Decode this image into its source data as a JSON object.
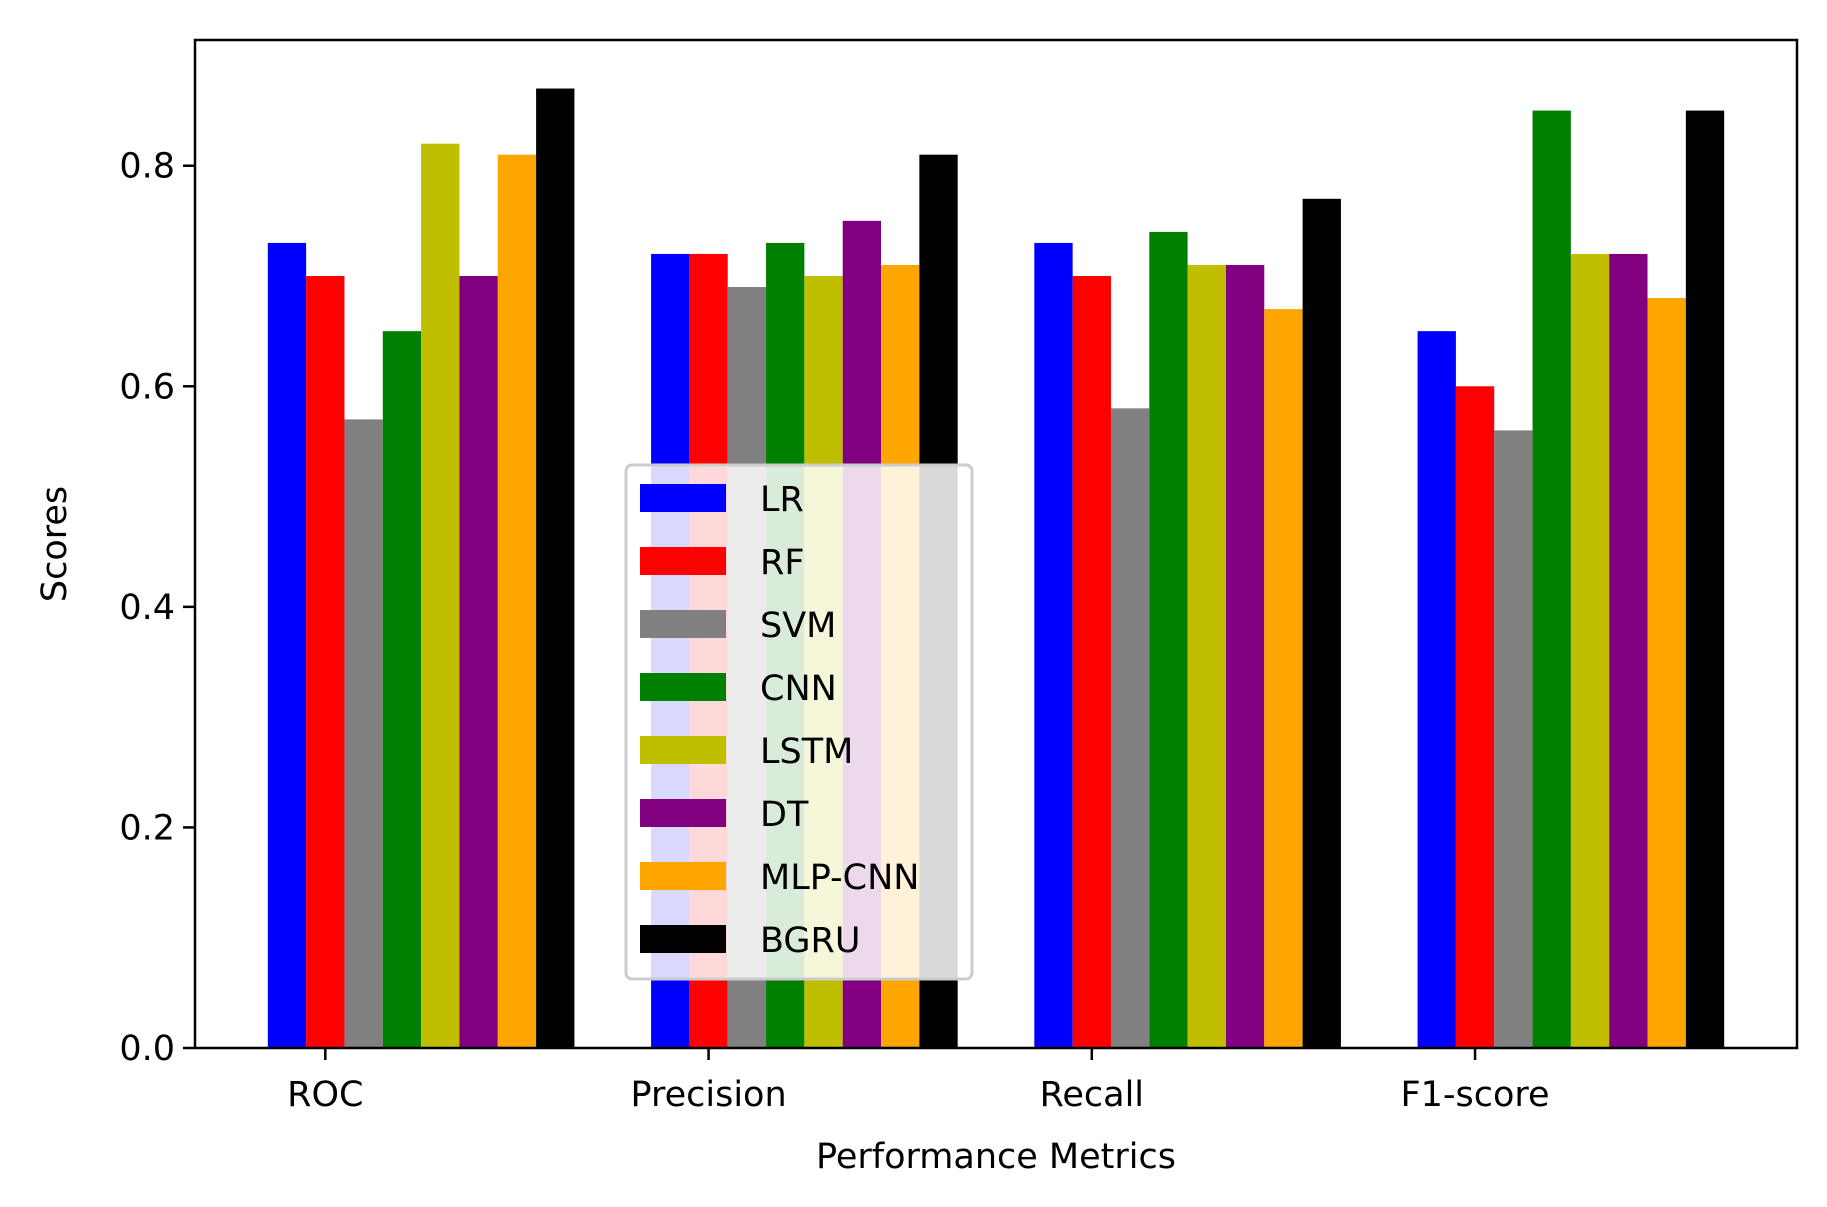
{
  "chart_data": {
    "type": "bar",
    "title": "",
    "xlabel": "Performance Metrics",
    "ylabel": "Scores",
    "ylim": [
      0,
      0.914
    ],
    "yticks": [
      "0.0",
      "0.2",
      "0.4",
      "0.6",
      "0.8"
    ],
    "ytick_values": [
      0.0,
      0.2,
      0.4,
      0.6,
      0.8
    ],
    "grid": false,
    "legend_position": "lower-center",
    "categories": [
      "ROC",
      "Precision",
      "Recall",
      "F1-score"
    ],
    "series": [
      {
        "name": "LR",
        "color": "#0000ff",
        "values": [
          0.73,
          0.72,
          0.73,
          0.65
        ]
      },
      {
        "name": "RF",
        "color": "#ff0000",
        "values": [
          0.7,
          0.72,
          0.7,
          0.6
        ]
      },
      {
        "name": "SVM",
        "color": "#808080",
        "values": [
          0.57,
          0.69,
          0.58,
          0.56
        ]
      },
      {
        "name": "CNN",
        "color": "#008000",
        "values": [
          0.65,
          0.73,
          0.74,
          0.85
        ]
      },
      {
        "name": "LSTM",
        "color": "#bfbf00",
        "values": [
          0.82,
          0.7,
          0.71,
          0.72
        ]
      },
      {
        "name": "DT",
        "color": "#800080",
        "values": [
          0.7,
          0.75,
          0.71,
          0.72
        ]
      },
      {
        "name": "MLP-CNN",
        "color": "#ffa500",
        "values": [
          0.81,
          0.71,
          0.67,
          0.68
        ]
      },
      {
        "name": "BGRU",
        "color": "#000000",
        "values": [
          0.87,
          0.81,
          0.77,
          0.85
        ]
      }
    ]
  }
}
